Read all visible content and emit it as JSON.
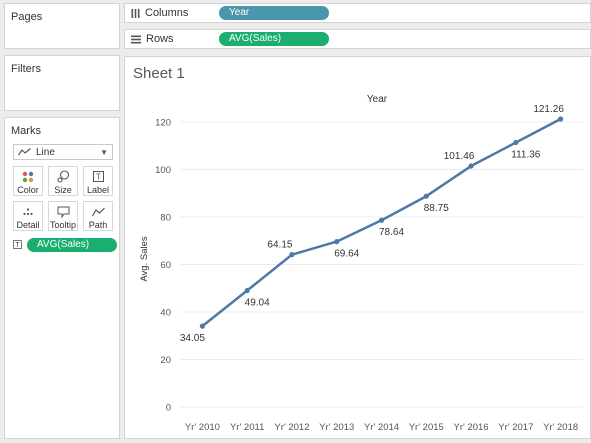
{
  "panels": {
    "pages_title": "Pages",
    "filters_title": "Filters",
    "marks_title": "Marks"
  },
  "marks": {
    "type_value": "Line",
    "buttons": [
      {
        "label": "Color",
        "icon": "color-dots-icon"
      },
      {
        "label": "Size",
        "icon": "size-icon"
      },
      {
        "label": "Label",
        "icon": "label-icon"
      },
      {
        "label": "Detail",
        "icon": "detail-icon"
      },
      {
        "label": "Tooltip",
        "icon": "tooltip-icon"
      },
      {
        "label": "Path",
        "icon": "path-icon"
      }
    ],
    "label_pill": "AVG(Sales)"
  },
  "shelves": {
    "columns_label": "Columns",
    "columns_pill": "Year",
    "rows_label": "Rows",
    "rows_pill": "AVG(Sales)"
  },
  "colors": {
    "dimension_pill": "#4a96ad",
    "measure_pill": "#1aae6f",
    "line": "#4e79a7"
  },
  "sheet": {
    "title": "Sheet 1"
  },
  "chart_data": {
    "type": "line",
    "top_label": "Year",
    "ylabel": "Avg. Sales",
    "categories": [
      "Yr' 2010",
      "Yr' 2011",
      "Yr' 2012",
      "Yr' 2013",
      "Yr' 2014",
      "Yr' 2015",
      "Yr' 2016",
      "Yr' 2017",
      "Yr' 2018"
    ],
    "values": [
      34.05,
      49.04,
      64.15,
      69.64,
      78.64,
      88.75,
      101.46,
      111.36,
      121.26
    ],
    "value_labels": [
      "34.05",
      "49.04",
      "64.15",
      "69.64",
      "78.64",
      "88.75",
      "101.46",
      "111.36",
      "121.26"
    ],
    "ylim": [
      0,
      120
    ],
    "yticks": [
      0,
      20,
      40,
      60,
      80,
      100,
      120
    ],
    "grid": true
  }
}
